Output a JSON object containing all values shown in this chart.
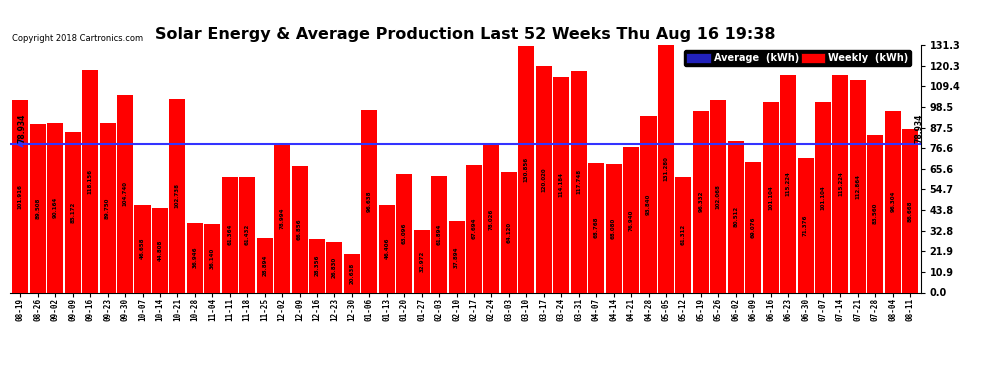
{
  "title": "Solar Energy & Average Production Last 52 Weeks Thu Aug 16 19:38",
  "copyright": "Copyright 2018 Cartronics.com",
  "average_value": 78.934,
  "average_label": "78.934",
  "bar_color": "#ff0000",
  "average_line_color": "#3333ff",
  "background_color": "#ffffff",
  "plot_background": "#ffffff",
  "grid_color": "#aaaaaa",
  "yticks": [
    0.0,
    10.9,
    21.9,
    32.8,
    43.8,
    54.7,
    65.6,
    76.6,
    87.5,
    98.5,
    109.4,
    120.3,
    131.3
  ],
  "legend_avg_color": "#2222bb",
  "legend_weekly_color": "#ff0000",
  "categories": [
    "08-19",
    "08-26",
    "09-02",
    "09-09",
    "09-16",
    "09-23",
    "09-30",
    "10-07",
    "10-14",
    "10-21",
    "10-28",
    "11-04",
    "11-11",
    "11-18",
    "11-25",
    "12-02",
    "12-09",
    "12-16",
    "12-23",
    "12-30",
    "01-06",
    "01-13",
    "01-20",
    "01-27",
    "02-03",
    "02-10",
    "02-17",
    "02-24",
    "03-03",
    "03-10",
    "03-17",
    "03-24",
    "03-31",
    "04-07",
    "04-14",
    "04-21",
    "04-28",
    "05-05",
    "05-12",
    "05-19",
    "05-26",
    "06-02",
    "06-09",
    "06-16",
    "06-23",
    "06-30",
    "07-07",
    "07-14",
    "07-21",
    "07-28",
    "08-04",
    "08-11"
  ],
  "values": [
    101.916,
    89.508,
    90.164,
    85.172,
    118.156,
    89.75,
    104.74,
    46.658,
    44.808,
    102.738,
    36.946,
    36.14,
    61.364,
    61.432,
    28.894,
    78.994,
    66.856,
    28.356,
    26.83,
    20.638,
    96.638,
    46.406,
    63.096,
    32.972,
    61.894,
    37.894,
    67.694,
    78.026,
    64.12,
    130.856,
    120.02,
    114.184,
    117.748,
    68.768,
    68.08,
    76.94,
    93.84,
    131.28,
    61.312,
    96.332,
    102.068,
    80.512,
    69.076,
    101.104,
    115.224,
    71.376,
    101.104,
    115.224,
    112.864,
    83.56,
    96.304,
    86.668
  ],
  "value_labels": [
    "101.916",
    "89.508",
    "90.164",
    "85.172",
    "118.156",
    "89.750",
    "104.740",
    "46.658",
    "44.808",
    "102.738",
    "36.946",
    "36.140",
    "61.364",
    "61.432",
    "28.894",
    "78.994",
    "66.856",
    "28.356",
    "26.830",
    "20.638",
    "96.638",
    "46.406",
    "63.096",
    "32.972",
    "61.894",
    "37.894",
    "67.694",
    "78.026",
    "64.120",
    "130.856",
    "120.020",
    "114.184",
    "117.748",
    "68.768",
    "68.080",
    "76.940",
    "93.840",
    "131.280",
    "61.312",
    "96.332",
    "102.068",
    "80.512",
    "69.076",
    "101.104",
    "115.224",
    "71.376",
    "101.104",
    "115.224",
    "112.864",
    "83.560",
    "96.304",
    "86.668"
  ]
}
